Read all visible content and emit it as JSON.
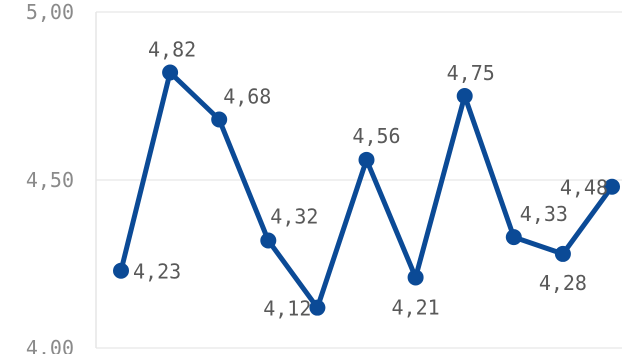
{
  "chart_data": {
    "type": "line",
    "title": "",
    "xlabel": "",
    "ylabel": "",
    "ylim": [
      4.0,
      5.0
    ],
    "yticks": [
      {
        "value": 4.0,
        "label": "4,00"
      },
      {
        "value": 4.5,
        "label": "4,50"
      },
      {
        "value": 5.0,
        "label": "5,00"
      }
    ],
    "grid": true,
    "legend": "none",
    "series": [
      {
        "color": "#0b4a96",
        "values": [
          4.23,
          4.82,
          4.68,
          4.32,
          4.12,
          4.56,
          4.21,
          4.75,
          4.33,
          4.28,
          4.48
        ],
        "labels": [
          "4,23",
          "4,82",
          "4,68",
          "4,32",
          "4,12",
          "4,56",
          "4,21",
          "4,75",
          "4,33",
          "4,28",
          "4,48"
        ]
      }
    ]
  }
}
